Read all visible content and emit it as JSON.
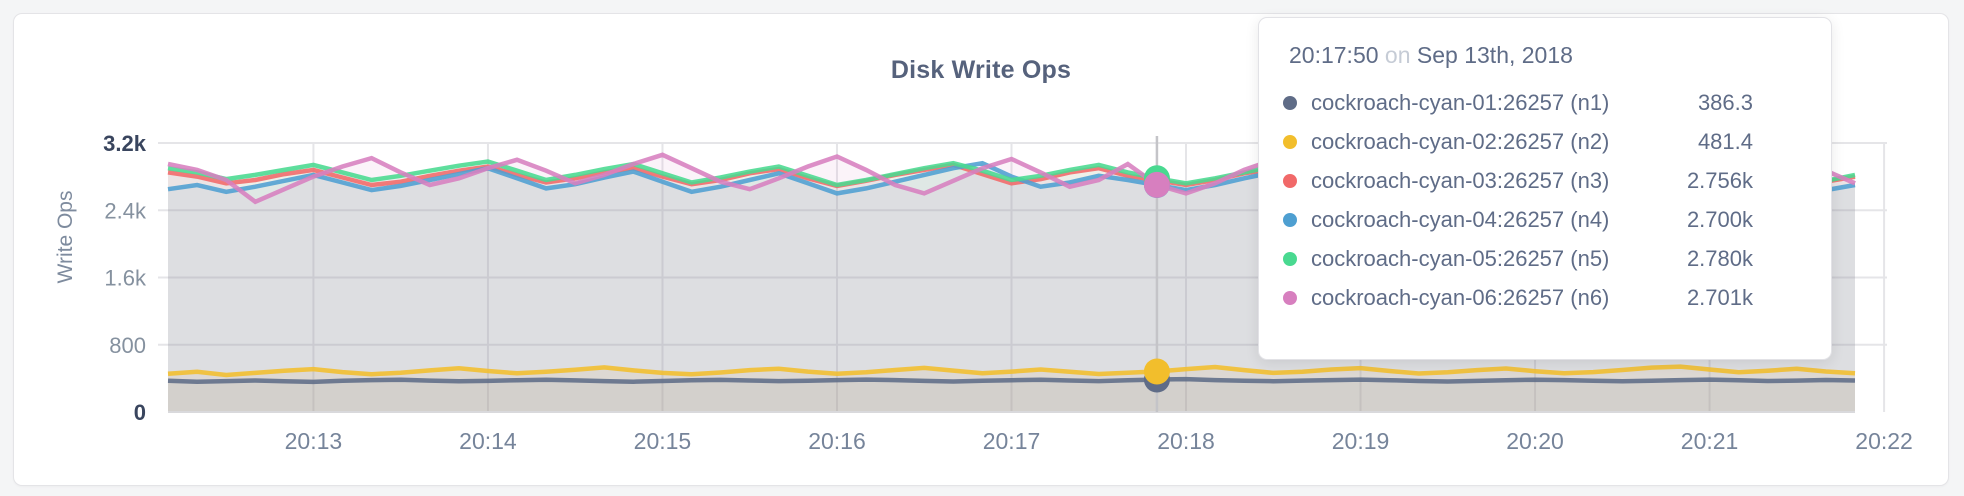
{
  "page": {
    "background": "#f4f5f6",
    "card_background": "#ffffff"
  },
  "chart_data": {
    "type": "area",
    "title": "Disk Write Ops",
    "ylabel": "Write Ops",
    "xlabel": "",
    "grid": true,
    "legend_position": "tooltip-only",
    "ylim": [
      0,
      3200
    ],
    "y_ticks": [
      {
        "value": 0,
        "label": "0"
      },
      {
        "value": 800,
        "label": "800"
      },
      {
        "value": 1600,
        "label": "1.6k"
      },
      {
        "value": 2400,
        "label": "2.4k"
      },
      {
        "value": 3200,
        "label": "3.2k"
      }
    ],
    "x_ticks": [
      "20:13",
      "20:14",
      "20:15",
      "20:16",
      "20:17",
      "20:18",
      "20:19",
      "20:20",
      "20:21",
      "20:22"
    ],
    "x_start": "20:12:10",
    "x_step_seconds": 10,
    "hover_index": 34,
    "hover_time": "20:17:50",
    "series": [
      {
        "id": "n1",
        "name": "cockroach-cyan-01:26257 (n1)",
        "color": "#5F6C87",
        "values": [
          372,
          361,
          368,
          375,
          366,
          358,
          371,
          379,
          384,
          373,
          365,
          370,
          378,
          383,
          376,
          368,
          361,
          369,
          377,
          382,
          375,
          367,
          372,
          380,
          386,
          379,
          370,
          363,
          371,
          378,
          383,
          375,
          368,
          377,
          386.3,
          391,
          380,
          371,
          366,
          373,
          380,
          386,
          378,
          369,
          363,
          370,
          377,
          384,
          379,
          371,
          366,
          372,
          379,
          385,
          377,
          369,
          374,
          381,
          375
        ]
      },
      {
        "id": "n2",
        "name": "cockroach-cyan-02:26257 (n2)",
        "color": "#F2BE2C",
        "values": [
          455,
          478,
          440,
          465,
          490,
          510,
          475,
          450,
          468,
          495,
          520,
          488,
          460,
          478,
          502,
          530,
          495,
          465,
          448,
          470,
          498,
          515,
          480,
          455,
          472,
          500,
          525,
          492,
          462,
          480,
          505,
          478,
          452,
          468,
          481.4,
          510,
          535,
          498,
          465,
          478,
          505,
          522,
          488,
          458,
          472,
          498,
          518,
          485,
          460,
          475,
          500,
          528,
          540,
          505,
          472,
          490,
          515,
          482,
          460
        ]
      },
      {
        "id": "n3",
        "name": "cockroach-cyan-03:26257 (n3)",
        "color": "#F16969",
        "values": [
          2850,
          2800,
          2720,
          2760,
          2830,
          2880,
          2790,
          2700,
          2740,
          2810,
          2870,
          2920,
          2820,
          2730,
          2780,
          2850,
          2900,
          2800,
          2710,
          2760,
          2840,
          2890,
          2780,
          2690,
          2750,
          2820,
          2880,
          2940,
          2830,
          2720,
          2770,
          2850,
          2900,
          2810,
          2756,
          2700,
          2760,
          2840,
          2890,
          2790,
          2700,
          2750,
          2830,
          2900,
          2950,
          2840,
          2730,
          2780,
          2860,
          2910,
          2800,
          2700,
          2750,
          2830,
          2880,
          2780,
          2690,
          2740,
          2800
        ]
      },
      {
        "id": "n4",
        "name": "cockroach-cyan-04:26257 (n4)",
        "color": "#4E9FD1",
        "values": [
          2650,
          2700,
          2620,
          2680,
          2750,
          2820,
          2730,
          2640,
          2690,
          2760,
          2830,
          2900,
          2780,
          2660,
          2710,
          2790,
          2860,
          2740,
          2620,
          2680,
          2760,
          2840,
          2720,
          2600,
          2660,
          2740,
          2820,
          2900,
          2960,
          2800,
          2680,
          2730,
          2810,
          2760,
          2700,
          2640,
          2700,
          2780,
          2850,
          2740,
          2620,
          2680,
          2760,
          2840,
          2900,
          2780,
          2650,
          2700,
          2780,
          2850,
          2730,
          2610,
          2670,
          2750,
          2820,
          2700,
          2580,
          2640,
          2700
        ]
      },
      {
        "id": "n5",
        "name": "cockroach-cyan-05:26257 (n5)",
        "color": "#49D990",
        "values": [
          2900,
          2850,
          2770,
          2820,
          2880,
          2940,
          2850,
          2760,
          2810,
          2870,
          2930,
          2980,
          2870,
          2760,
          2820,
          2890,
          2950,
          2840,
          2730,
          2790,
          2860,
          2920,
          2810,
          2700,
          2760,
          2830,
          2900,
          2960,
          2870,
          2760,
          2810,
          2880,
          2940,
          2850,
          2780,
          2720,
          2780,
          2850,
          2920,
          2820,
          2710,
          2770,
          2840,
          2910,
          2970,
          2860,
          2750,
          2800,
          2870,
          2930,
          2820,
          2700,
          2760,
          2840,
          2900,
          2790,
          2680,
          2750,
          2820
        ]
      },
      {
        "id": "n6",
        "name": "cockroach-cyan-06:26257 (n6)",
        "color": "#D77FBF",
        "values": [
          2950,
          2880,
          2760,
          2500,
          2650,
          2800,
          2920,
          3020,
          2850,
          2700,
          2780,
          2900,
          3000,
          2870,
          2720,
          2820,
          2950,
          3060,
          2900,
          2740,
          2650,
          2780,
          2920,
          3040,
          2880,
          2700,
          2600,
          2750,
          2900,
          3010,
          2850,
          2680,
          2760,
          2950,
          2701,
          2600,
          2720,
          2880,
          3000,
          2860,
          2680,
          2580,
          2720,
          2890,
          3020,
          2900,
          2720,
          2620,
          2760,
          2920,
          3050,
          2880,
          2700,
          2600,
          2750,
          2900,
          3030,
          2870,
          2720
        ]
      }
    ]
  },
  "tooltip": {
    "time": "20:17:50",
    "conjunction": "on",
    "date": "Sep 13th, 2018",
    "rows": [
      {
        "name": "cockroach-cyan-01:26257 (n1)",
        "value": "386.3",
        "color": "#5F6C87"
      },
      {
        "name": "cockroach-cyan-02:26257 (n2)",
        "value": "481.4",
        "color": "#F2BE2C"
      },
      {
        "name": "cockroach-cyan-03:26257 (n3)",
        "value": "2.756k",
        "color": "#F16969"
      },
      {
        "name": "cockroach-cyan-04:26257 (n4)",
        "value": "2.700k",
        "color": "#4E9FD1"
      },
      {
        "name": "cockroach-cyan-05:26257 (n5)",
        "value": "2.780k",
        "color": "#49D990"
      },
      {
        "name": "cockroach-cyan-06:26257 (n6)",
        "value": "2.701k",
        "color": "#D77FBF"
      }
    ]
  }
}
